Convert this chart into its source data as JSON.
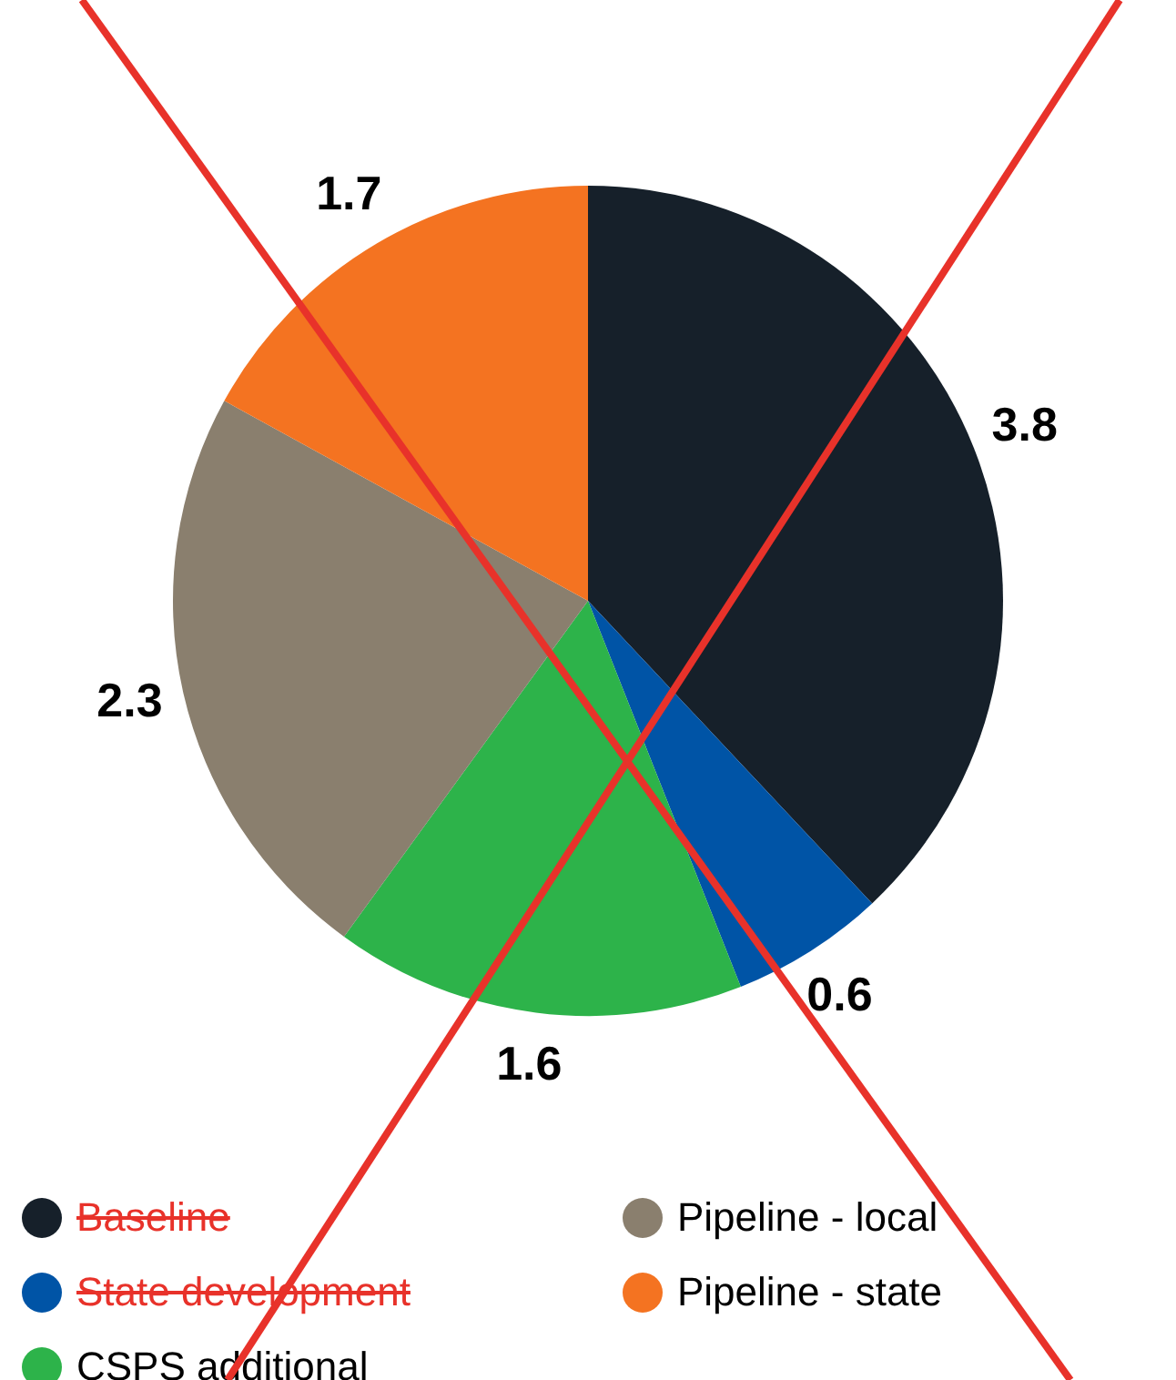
{
  "chart_data": {
    "type": "pie",
    "categories": [
      "Baseline",
      "State development",
      "CSPS additional",
      "Pipeline - local",
      "Pipeline - state"
    ],
    "values": [
      3.8,
      0.6,
      1.6,
      2.3,
      1.7
    ],
    "colors": [
      "#16202a",
      "#0054a6",
      "#2db34a",
      "#8a7f6e",
      "#f47321"
    ],
    "data_labels": true,
    "legend": "bottom"
  }
}
